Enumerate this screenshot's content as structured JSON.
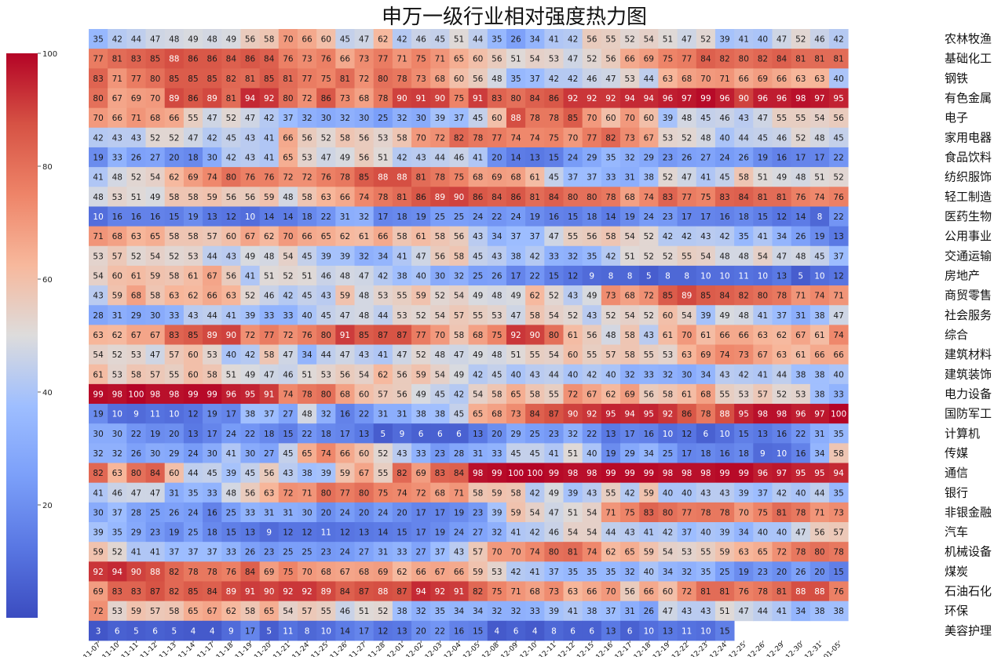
{
  "chart_data": {
    "type": "heatmap",
    "title": "申万一级行业相对强度热力图",
    "colormap": "coolwarm",
    "vmin": 0,
    "vmax": 100,
    "colorbar_ticks": [
      20,
      40,
      60,
      80,
      100
    ],
    "columns": [
      "11-07",
      "11-10",
      "11-11",
      "11-12",
      "11-13",
      "11-14",
      "11-17",
      "11-18",
      "11-19",
      "11-20",
      "11-21",
      "11-24",
      "11-25",
      "11-26",
      "11-27",
      "11-28",
      "12-01",
      "12-02",
      "12-03",
      "12-04",
      "12-05",
      "12-08",
      "12-09",
      "12-10",
      "12-11",
      "12-12",
      "12-15",
      "12-16",
      "12-17",
      "12-18",
      "12-19",
      "12-22",
      "12-23",
      "12-24",
      "12-25",
      "12-26",
      "12-29",
      "12-30",
      "12-31",
      "01-05"
    ],
    "rows": [
      "农林牧渔",
      "基础化工",
      "钢铁",
      "有色金属",
      "电子",
      "家用电器",
      "食品饮料",
      "纺织服饰",
      "轻工制造",
      "医药生物",
      "公用事业",
      "交通运输",
      "房地产",
      "商贸零售",
      "社会服务",
      "综合",
      "建筑材料",
      "建筑装饰",
      "电力设备",
      "国防军工",
      "计算机",
      "传媒",
      "通信",
      "银行",
      "非银金融",
      "汽车",
      "机械设备",
      "煤炭",
      "石油石化",
      "环保",
      "美容护理"
    ],
    "values": [
      [
        35,
        42,
        44,
        47,
        48,
        49,
        48,
        49,
        56,
        58,
        70,
        66,
        60,
        45,
        47,
        62,
        42,
        46,
        45,
        51,
        44,
        35,
        26,
        34,
        41,
        42,
        56,
        55,
        52,
        54,
        51,
        47,
        52,
        39,
        41,
        40,
        47,
        52,
        46,
        42
      ],
      [
        77,
        81,
        83,
        85,
        88,
        86,
        86,
        84,
        86,
        84,
        76,
        73,
        76,
        66,
        73,
        77,
        71,
        75,
        71,
        65,
        60,
        56,
        51,
        54,
        53,
        47,
        52,
        56,
        66,
        69,
        75,
        77,
        84,
        82,
        80,
        82,
        84,
        81,
        81,
        81
      ],
      [
        83,
        71,
        77,
        80,
        85,
        85,
        85,
        82,
        81,
        85,
        81,
        77,
        75,
        81,
        72,
        80,
        78,
        73,
        68,
        60,
        56,
        48,
        35,
        37,
        42,
        42,
        46,
        47,
        53,
        44,
        63,
        68,
        70,
        71,
        66,
        69,
        66,
        63,
        63,
        40
      ],
      [
        80,
        67,
        69,
        70,
        89,
        86,
        89,
        81,
        94,
        92,
        80,
        72,
        86,
        73,
        68,
        78,
        90,
        91,
        90,
        75,
        91,
        83,
        80,
        84,
        86,
        92,
        92,
        92,
        94,
        94,
        96,
        97,
        99,
        96,
        90,
        96,
        96,
        98,
        97,
        95
      ],
      [
        70,
        66,
        71,
        68,
        66,
        55,
        47,
        52,
        47,
        42,
        37,
        32,
        30,
        32,
        30,
        25,
        32,
        30,
        39,
        37,
        45,
        60,
        88,
        78,
        78,
        85,
        70,
        60,
        70,
        60,
        39,
        48,
        45,
        46,
        43,
        47,
        55,
        55,
        54,
        56
      ],
      [
        42,
        43,
        43,
        52,
        52,
        47,
        42,
        45,
        43,
        41,
        66,
        56,
        52,
        58,
        56,
        53,
        58,
        70,
        72,
        82,
        78,
        77,
        74,
        74,
        75,
        70,
        77,
        82,
        73,
        67,
        53,
        52,
        48,
        40,
        44,
        45,
        46,
        52,
        48,
        45
      ],
      [
        19,
        33,
        26,
        27,
        20,
        18,
        30,
        42,
        43,
        41,
        65,
        53,
        47,
        49,
        56,
        51,
        42,
        43,
        44,
        46,
        41,
        20,
        14,
        13,
        15,
        24,
        29,
        35,
        32,
        29,
        23,
        26,
        27,
        24,
        26,
        19,
        16,
        17,
        17,
        22
      ],
      [
        41,
        48,
        52,
        54,
        62,
        69,
        74,
        80,
        76,
        76,
        72,
        72,
        76,
        78,
        85,
        88,
        88,
        81,
        78,
        75,
        68,
        69,
        68,
        61,
        45,
        37,
        37,
        33,
        31,
        38,
        52,
        47,
        41,
        45,
        58,
        51,
        49,
        48,
        51,
        52
      ],
      [
        48,
        53,
        51,
        49,
        58,
        58,
        59,
        56,
        56,
        59,
        48,
        58,
        63,
        66,
        74,
        78,
        81,
        86,
        89,
        90,
        86,
        84,
        86,
        81,
        84,
        80,
        80,
        78,
        68,
        74,
        83,
        77,
        75,
        83,
        84,
        81,
        81,
        76,
        74,
        76
      ],
      [
        10,
        16,
        16,
        16,
        15,
        19,
        13,
        12,
        10,
        14,
        14,
        18,
        22,
        31,
        32,
        17,
        18,
        19,
        25,
        25,
        24,
        22,
        24,
        19,
        16,
        15,
        18,
        14,
        19,
        24,
        23,
        17,
        17,
        16,
        18,
        15,
        12,
        14,
        8,
        22
      ],
      [
        71,
        68,
        63,
        65,
        58,
        58,
        57,
        60,
        67,
        62,
        70,
        66,
        65,
        62,
        61,
        66,
        58,
        61,
        58,
        56,
        43,
        34,
        37,
        37,
        47,
        55,
        56,
        58,
        54,
        52,
        42,
        42,
        43,
        42,
        35,
        41,
        34,
        26,
        19,
        13
      ],
      [
        53,
        57,
        52,
        54,
        52,
        53,
        44,
        43,
        49,
        48,
        54,
        45,
        39,
        39,
        32,
        34,
        41,
        47,
        56,
        58,
        45,
        43,
        38,
        42,
        33,
        32,
        35,
        42,
        51,
        52,
        52,
        55,
        54,
        48,
        48,
        54,
        47,
        48,
        45,
        37
      ],
      [
        54,
        60,
        61,
        59,
        58,
        61,
        67,
        56,
        41,
        51,
        52,
        51,
        46,
        48,
        47,
        42,
        38,
        40,
        30,
        32,
        25,
        26,
        17,
        22,
        15,
        12,
        9,
        8,
        8,
        5,
        8,
        8,
        10,
        10,
        11,
        10,
        13,
        5,
        10,
        12
      ],
      [
        43,
        59,
        68,
        58,
        63,
        62,
        66,
        63,
        52,
        46,
        42,
        45,
        43,
        59,
        48,
        53,
        55,
        59,
        52,
        54,
        49,
        48,
        49,
        62,
        52,
        43,
        49,
        73,
        68,
        72,
        85,
        89,
        85,
        84,
        82,
        80,
        78,
        71,
        74,
        71
      ],
      [
        28,
        31,
        29,
        30,
        33,
        43,
        44,
        41,
        39,
        33,
        33,
        40,
        45,
        47,
        48,
        44,
        53,
        52,
        54,
        57,
        55,
        53,
        47,
        58,
        54,
        52,
        43,
        52,
        54,
        52,
        60,
        54,
        39,
        49,
        48,
        41,
        37,
        31,
        38,
        47
      ],
      [
        63,
        62,
        67,
        67,
        83,
        85,
        89,
        90,
        72,
        77,
        72,
        76,
        80,
        91,
        85,
        87,
        87,
        77,
        70,
        58,
        68,
        75,
        92,
        90,
        80,
        61,
        56,
        48,
        58,
        43,
        61,
        70,
        61,
        66,
        66,
        63,
        62,
        67,
        61,
        74
      ],
      [
        54,
        52,
        53,
        47,
        57,
        60,
        53,
        40,
        42,
        58,
        47,
        34,
        44,
        47,
        43,
        41,
        47,
        52,
        48,
        47,
        49,
        48,
        51,
        55,
        54,
        60,
        55,
        57,
        58,
        55,
        53,
        63,
        69,
        74,
        73,
        67,
        63,
        61,
        66,
        66
      ],
      [
        61,
        53,
        58,
        57,
        55,
        60,
        58,
        51,
        49,
        47,
        46,
        51,
        53,
        56,
        54,
        62,
        56,
        59,
        54,
        49,
        42,
        45,
        40,
        43,
        44,
        40,
        42,
        40,
        32,
        33,
        32,
        30,
        34,
        43,
        42,
        41,
        44,
        38,
        38,
        40
      ],
      [
        99,
        98,
        100,
        98,
        98,
        99,
        99,
        96,
        95,
        91,
        74,
        78,
        80,
        68,
        60,
        57,
        56,
        49,
        45,
        42,
        54,
        58,
        65,
        58,
        55,
        72,
        67,
        62,
        69,
        56,
        58,
        61,
        68,
        55,
        53,
        57,
        52,
        53,
        38,
        33
      ],
      [
        19,
        10,
        9,
        11,
        10,
        12,
        19,
        17,
        38,
        37,
        27,
        48,
        32,
        16,
        22,
        31,
        31,
        38,
        38,
        45,
        65,
        68,
        73,
        84,
        87,
        90,
        92,
        95,
        94,
        95,
        92,
        86,
        78,
        88,
        95,
        98,
        98,
        96,
        97,
        100
      ],
      [
        30,
        30,
        22,
        19,
        20,
        13,
        17,
        24,
        22,
        18,
        15,
        22,
        18,
        17,
        13,
        5,
        9,
        6,
        6,
        6,
        13,
        20,
        29,
        25,
        23,
        32,
        22,
        13,
        17,
        16,
        10,
        12,
        6,
        10,
        15,
        13,
        16,
        22,
        31,
        35
      ],
      [
        32,
        32,
        26,
        30,
        29,
        24,
        30,
        41,
        30,
        27,
        45,
        65,
        74,
        66,
        60,
        52,
        43,
        33,
        23,
        28,
        31,
        33,
        45,
        45,
        41,
        51,
        40,
        19,
        29,
        34,
        25,
        17,
        18,
        16,
        18,
        9,
        10,
        16,
        34,
        58
      ],
      [
        82,
        63,
        80,
        84,
        60,
        44,
        45,
        39,
        45,
        56,
        43,
        38,
        39,
        59,
        67,
        55,
        82,
        69,
        83,
        84,
        98,
        99,
        100,
        100,
        99,
        98,
        98,
        99,
        99,
        99,
        98,
        98,
        98,
        99,
        99,
        96,
        97,
        95,
        95,
        94
      ],
      [
        41,
        46,
        47,
        47,
        31,
        35,
        33,
        48,
        56,
        63,
        72,
        71,
        80,
        77,
        80,
        75,
        74,
        72,
        68,
        71,
        58,
        59,
        58,
        42,
        49,
        39,
        43,
        55,
        42,
        59,
        40,
        40,
        43,
        43,
        39,
        37,
        42,
        40,
        44,
        35
      ],
      [
        30,
        37,
        28,
        25,
        26,
        24,
        16,
        25,
        33,
        31,
        31,
        30,
        20,
        24,
        20,
        24,
        20,
        17,
        17,
        19,
        23,
        39,
        59,
        54,
        47,
        51,
        54,
        71,
        75,
        83,
        80,
        77,
        78,
        78,
        70,
        75,
        81,
        78,
        71,
        73
      ],
      [
        39,
        35,
        29,
        23,
        19,
        25,
        18,
        15,
        13,
        9,
        12,
        12,
        11,
        12,
        13,
        14,
        15,
        17,
        19,
        24,
        27,
        32,
        41,
        42,
        46,
        54,
        54,
        44,
        43,
        41,
        42,
        37,
        40,
        39,
        34,
        40,
        40,
        47,
        56,
        57
      ],
      [
        59,
        52,
        41,
        41,
        37,
        37,
        37,
        33,
        26,
        23,
        25,
        25,
        23,
        24,
        27,
        31,
        33,
        27,
        37,
        43,
        57,
        70,
        70,
        74,
        80,
        81,
        74,
        62,
        65,
        59,
        54,
        53,
        55,
        59,
        63,
        65,
        72,
        78,
        80,
        78
      ],
      [
        92,
        94,
        90,
        88,
        82,
        78,
        78,
        76,
        84,
        69,
        75,
        70,
        68,
        67,
        68,
        69,
        62,
        66,
        67,
        66,
        59,
        53,
        42,
        41,
        37,
        35,
        35,
        35,
        32,
        40,
        34,
        32,
        35,
        25,
        19,
        23,
        20,
        26,
        20,
        15
      ],
      [
        69,
        83,
        83,
        87,
        82,
        85,
        84,
        89,
        91,
        90,
        92,
        92,
        89,
        84,
        87,
        88,
        87,
        94,
        92,
        91,
        82,
        75,
        71,
        68,
        73,
        63,
        66,
        70,
        56,
        66,
        60,
        72,
        81,
        81,
        76,
        78,
        81,
        88,
        88,
        76
      ],
      [
        72,
        53,
        59,
        57,
        58,
        65,
        67,
        62,
        58,
        65,
        54,
        57,
        55,
        46,
        51,
        52,
        38,
        32,
        35,
        34,
        34,
        32,
        32,
        33,
        39,
        41,
        38,
        37,
        31,
        26,
        47,
        43,
        43,
        51,
        47,
        44,
        41,
        34,
        38,
        38
      ],
      [
        3,
        6,
        5,
        6,
        5,
        4,
        4,
        9,
        17,
        5,
        11,
        8,
        10,
        14,
        17,
        12,
        13,
        20,
        22,
        16,
        15,
        4,
        6,
        4,
        8,
        6,
        6,
        13,
        6,
        10,
        13,
        11,
        10,
        15,
        null,
        null,
        null,
        null,
        null,
        null
      ]
    ]
  }
}
